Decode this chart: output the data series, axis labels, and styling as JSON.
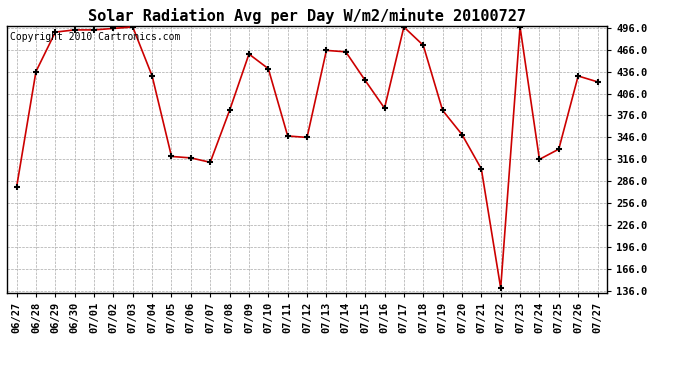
{
  "title": "Solar Radiation Avg per Day W/m2/minute 20100727",
  "copyright": "Copyright 2010 Cartronics.com",
  "dates": [
    "06/27",
    "06/28",
    "06/29",
    "06/30",
    "07/01",
    "07/02",
    "07/03",
    "07/04",
    "07/05",
    "07/06",
    "07/07",
    "07/08",
    "07/09",
    "07/10",
    "07/11",
    "07/12",
    "07/13",
    "07/14",
    "07/15",
    "07/16",
    "07/17",
    "07/18",
    "07/19",
    "07/20",
    "07/21",
    "07/22",
    "07/23",
    "07/24",
    "07/25",
    "07/26",
    "07/27"
  ],
  "values": [
    278,
    436,
    490,
    493,
    493,
    495,
    497,
    430,
    320,
    318,
    312,
    383,
    460,
    440,
    348,
    346,
    465,
    463,
    424,
    386,
    497,
    472,
    383,
    350,
    303,
    140,
    497,
    316,
    330,
    430,
    422
  ],
  "line_color": "#cc0000",
  "marker_color": "#000000",
  "bg_color": "#ffffff",
  "grid_color": "#aaaaaa",
  "ylim_min": 136,
  "ylim_max": 496,
  "ytick_step": 30,
  "title_fontsize": 11,
  "tick_fontsize": 7.5,
  "copyright_fontsize": 7
}
